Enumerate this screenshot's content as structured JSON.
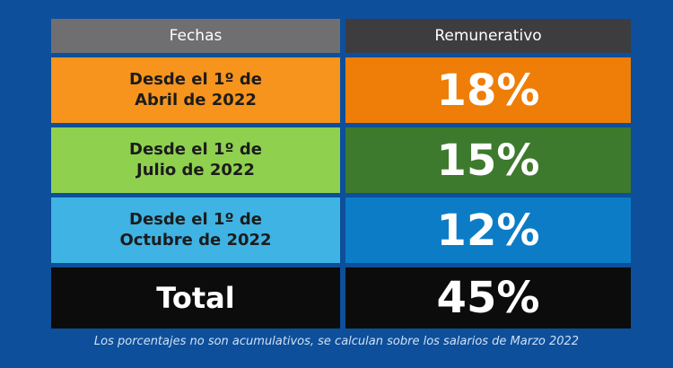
{
  "header": {
    "col1": "Fechas",
    "col2": "Remunerativo"
  },
  "rows": [
    {
      "label_line1": "Desde el 1º de",
      "label_line2": "Abril de 2022",
      "value": "18%",
      "label_color": "#f7941d",
      "value_color": "#ee7e07"
    },
    {
      "label_line1": "Desde el 1º de",
      "label_line2": "Julio de 2022",
      "value": "15%",
      "label_color": "#8fd14f",
      "value_color": "#3d7a2d"
    },
    {
      "label_line1": "Desde el 1º de",
      "label_line2": "Octubre de 2022",
      "value": "12%",
      "label_color": "#3fb3e3",
      "value_color": "#0c7cc6"
    }
  ],
  "total": {
    "label": "Total",
    "value": "45%"
  },
  "footnote": "Los porcentajes no son acumulativos, se calculan sobre los salarios de Marzo 2022",
  "colors": {
    "background": "#0d4f9a",
    "header_left": "#6f6f72",
    "header_right": "#3d3d40",
    "total_bg": "#0c0c0c"
  }
}
